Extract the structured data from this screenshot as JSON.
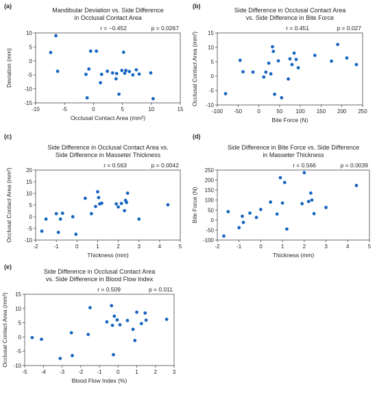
{
  "point_color": "#1565c0",
  "chart_data": [
    {
      "type": "scatter",
      "panel_label": "(a)",
      "title_lines": [
        "Mandibular Deviation vs. Side Difference",
        "in Occlusal Contact Area"
      ],
      "stats_r": "r = −0.452",
      "stats_p": "p = 0.0267",
      "xlabel": "Occlusal Contact Area (mm²)",
      "ylabel": "Deviation (mm)",
      "xlim": [
        -10,
        15
      ],
      "ylim": [
        -15,
        10
      ],
      "xticks": [
        "-10",
        "-5",
        "0",
        "5",
        "10",
        "15"
      ],
      "yticks": [
        "-15",
        "-10",
        "-5",
        "0",
        "5",
        "10"
      ],
      "x": [
        -7.4,
        -6.5,
        -6.2,
        -1.3,
        -1.1,
        -0.8,
        -0.5,
        0.5,
        1.2,
        1.4,
        2.4,
        3.3,
        3.9,
        4.0,
        4.4,
        4.9,
        5.2,
        5.4,
        5.6,
        6.2,
        6.8,
        7.4,
        7.9,
        9.9,
        10.3
      ],
      "y": [
        3.0,
        9.0,
        -3.7,
        -4.8,
        -13.2,
        -2.9,
        3.5,
        3.5,
        -7.8,
        -4.8,
        -3.7,
        -4.3,
        -6.4,
        -4.5,
        -11.9,
        -3.4,
        3.1,
        -4.4,
        -3.4,
        -3.8,
        -5.0,
        -3.2,
        -4.7,
        -4.3,
        -13.5
      ]
    },
    {
      "type": "scatter",
      "panel_label": "(b)",
      "title_lines": [
        "Side Difference in Occlusal Contact Area",
        "vs. Side Difference in Bite Force"
      ],
      "stats_r": "r = 0.451",
      "stats_p": "p = 0.027",
      "xlabel": "Bite Force (N)",
      "ylabel": "Occlusal Contact Area (mm²)",
      "xlim": [
        -100,
        250
      ],
      "ylim": [
        -10,
        15
      ],
      "xticks": [
        "-100",
        "-50",
        "0",
        "50",
        "100",
        "150",
        "200",
        "250"
      ],
      "yticks": [
        "-10",
        "-5",
        "0",
        "5",
        "10",
        "15"
      ],
      "x": [
        -80,
        -45,
        -38,
        -14,
        12,
        17,
        24,
        29,
        33,
        35,
        38,
        47,
        55,
        71,
        75,
        80,
        85,
        90,
        95,
        135,
        175,
        190,
        212,
        235
      ],
      "y": [
        -6.1,
        5.5,
        1.5,
        1.4,
        -0.3,
        1.4,
        4.5,
        0.8,
        10.2,
        8.6,
        -6.3,
        5.3,
        -7.5,
        -1.0,
        6.0,
        4.0,
        8.0,
        5.8,
        2.9,
        7.2,
        5.2,
        11.0,
        6.3,
        4.0
      ]
    },
    {
      "type": "scatter",
      "panel_label": "(c)",
      "title_lines": [
        "Side Difference in Occlusal Contact Area vs.",
        "Side Difference in Masseter Thickness"
      ],
      "stats_r": "r = 0.563",
      "stats_p": "p = 0.0042",
      "xlabel": "Thickness (mm)",
      "ylabel": "Occlusal Contact Area (mm²)",
      "xlim": [
        -2,
        5
      ],
      "ylim": [
        -10,
        20
      ],
      "xticks": [
        "-2",
        "-1",
        "0",
        "1",
        "2",
        "3",
        "4",
        "5"
      ],
      "yticks": [
        "-10",
        "-5",
        "0",
        "5",
        "10",
        "15",
        "20"
      ],
      "x": [
        -1.7,
        -1.5,
        -1.0,
        -0.9,
        -0.7,
        -0.8,
        -0.2,
        -0.05,
        0.4,
        0.7,
        0.9,
        1.0,
        1.05,
        1.1,
        1.2,
        1.9,
        2.0,
        2.15,
        2.3,
        2.35,
        2.4,
        2.45,
        3.0,
        4.4
      ],
      "y": [
        -6.2,
        -1.0,
        1.3,
        -6.7,
        1.5,
        -1.0,
        0.0,
        -7.5,
        7.9,
        1.3,
        4.4,
        10.7,
        8.2,
        5.5,
        5.8,
        5.5,
        4.2,
        5.7,
        2.6,
        7.0,
        6.1,
        10.1,
        -1.0,
        5.1
      ]
    },
    {
      "type": "scatter",
      "panel_label": "(d)",
      "title_lines": [
        "Side Difference in Bite Force vs. Side Difference",
        "in Masseter Thickness"
      ],
      "stats_r": "r = 0.566",
      "stats_p": "p = 0.0039",
      "xlabel": "Thickness (mm)",
      "ylabel": "Bite Force (N)",
      "xlim": [
        -2,
        5
      ],
      "ylim": [
        -100,
        250
      ],
      "xticks": [
        "-2",
        "-1",
        "0",
        "1",
        "2",
        "3",
        "4",
        "5"
      ],
      "yticks": [
        "-100",
        "-50",
        "0",
        "50",
        "100",
        "150",
        "200",
        "250"
      ],
      "x": [
        -1.7,
        -1.5,
        -1.0,
        -0.85,
        -0.8,
        -0.5,
        -0.2,
        0.0,
        0.45,
        0.75,
        0.9,
        1.0,
        1.1,
        1.2,
        1.9,
        2.0,
        2.2,
        2.3,
        2.35,
        2.45,
        3.0,
        4.4
      ],
      "y": [
        -80,
        42,
        -38,
        19,
        -12,
        35,
        13,
        53,
        90,
        30,
        212,
        85,
        188,
        -45,
        82,
        237,
        93,
        135,
        100,
        32,
        63,
        173
      ]
    },
    {
      "type": "scatter",
      "panel_label": "(e)",
      "title_lines": [
        "Side Difference in Occlusal Contact Area",
        "vs. Side Difference in Blood Flow Index"
      ],
      "stats_r": "r = 0.509",
      "stats_p": "p = 0.011",
      "xlabel": "Blood Flow Index (%)",
      "ylabel": "Occlusal Contact Area (mm²)",
      "xlim": [
        -5,
        3
      ],
      "ylim": [
        -10,
        15
      ],
      "xticks": [
        "-5",
        "-4",
        "-3",
        "-2",
        "-1",
        "0",
        "1",
        "2",
        "3"
      ],
      "yticks": [
        "-10",
        "-5",
        "0",
        "5",
        "10",
        "15"
      ],
      "x": [
        -4.6,
        -4.1,
        -3.1,
        -2.5,
        -2.45,
        -1.6,
        -1.5,
        -0.6,
        -0.35,
        -0.3,
        -0.25,
        -0.2,
        -0.05,
        0.1,
        0.5,
        0.8,
        0.9,
        1.0,
        1.25,
        1.45,
        1.5,
        2.6
      ],
      "y": [
        -0.2,
        -0.8,
        -7.5,
        1.5,
        -6.5,
        0.9,
        10.3,
        5.3,
        11.0,
        4.1,
        -6.2,
        7.3,
        6.0,
        4.3,
        5.8,
        2.7,
        -1.2,
        8.7,
        4.7,
        8.4,
        5.9,
        6.2
      ]
    }
  ]
}
